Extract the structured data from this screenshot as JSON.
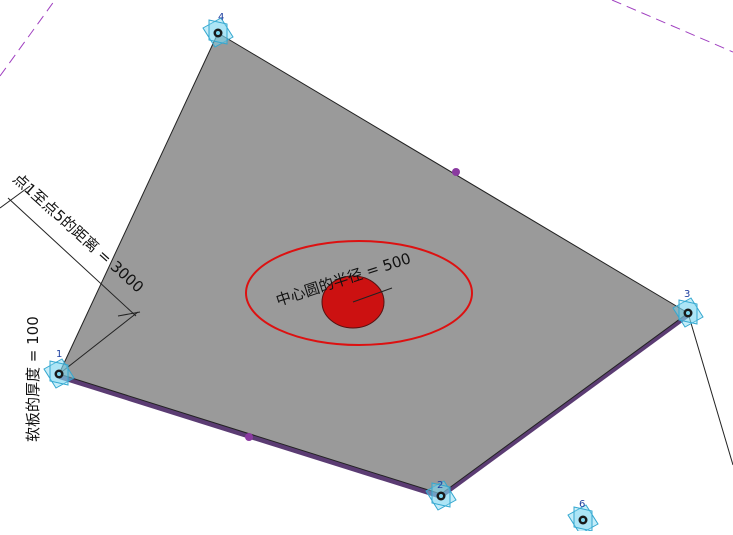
{
  "viewport": {
    "background": "#ffffff",
    "slab_fill": "#9a9a9a",
    "slab_edge": "#222222",
    "slab_side": "#5b3c73",
    "center_fill": "#cc1111",
    "ellipse_stroke": "#dd1111",
    "dash_color": "#a040c0",
    "handle_color": "#6fd0ee"
  },
  "annotations": {
    "distance_label": "点1至点5的距离 = 3000",
    "thickness_label": "软板的厚度 = 100",
    "radius_label": "中心圆的半径 = 500"
  },
  "points": [
    {
      "id": "p1",
      "label": "1"
    },
    {
      "id": "p2",
      "label": "2"
    },
    {
      "id": "p3",
      "label": "3"
    },
    {
      "id": "p4",
      "label": "4"
    },
    {
      "id": "p6",
      "label": "6"
    }
  ]
}
